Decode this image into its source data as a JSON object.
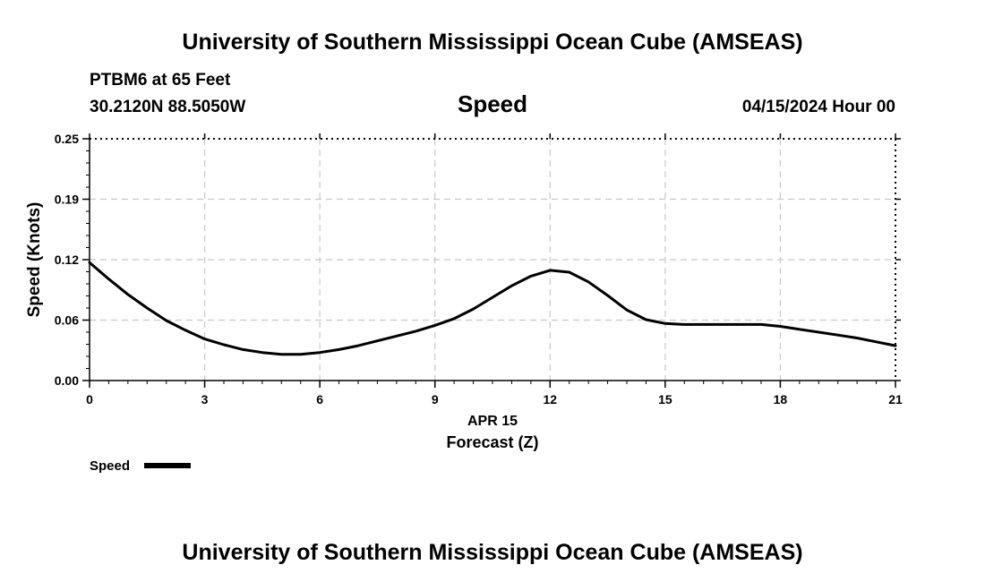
{
  "header": {
    "title": "University of Southern Mississippi Ocean Cube (AMSEAS)",
    "station": "PTBM6 at 65 Feet",
    "coords": "30.2120N  88.5050W",
    "variable": "Speed",
    "datetime": "04/15/2024 Hour 00"
  },
  "footer": {
    "title": "University of Southern Mississippi Ocean Cube (AMSEAS)"
  },
  "chart_data": {
    "type": "line",
    "title": "Speed",
    "xlabel": "Forecast (Z)",
    "xlabel_date": "APR 15",
    "ylabel": "Speed (Knots)",
    "xlim": [
      0,
      21
    ],
    "ylim": [
      0,
      0.25
    ],
    "x_ticks": [
      0,
      3,
      6,
      9,
      12,
      15,
      18,
      21
    ],
    "x_tick_labels": [
      "0",
      "3",
      "6",
      "9",
      "12",
      "15",
      "18",
      "21"
    ],
    "y_ticks": [
      0,
      0.0625,
      0.125,
      0.1875,
      0.25
    ],
    "y_tick_labels": [
      "0.00",
      "0.06",
      "0.12",
      "0.19",
      "0.25"
    ],
    "grid": true,
    "legend": [
      {
        "name": "Speed",
        "position": "bottom-left"
      }
    ],
    "series": [
      {
        "name": "Speed",
        "color": "#000000",
        "x": [
          0,
          0.5,
          1,
          1.5,
          2,
          2.5,
          3,
          3.5,
          4,
          4.5,
          5,
          5.5,
          6,
          6.5,
          7,
          7.5,
          8,
          8.5,
          9,
          9.5,
          10,
          10.5,
          11,
          11.5,
          12,
          12.5,
          13,
          13.5,
          14,
          14.5,
          15,
          15.5,
          16,
          16.5,
          17,
          17.5,
          18,
          18.5,
          19,
          19.5,
          20,
          20.5,
          21
        ],
        "values": [
          0.122,
          0.105,
          0.089,
          0.075,
          0.062,
          0.052,
          0.043,
          0.037,
          0.032,
          0.029,
          0.027,
          0.027,
          0.029,
          0.032,
          0.036,
          0.041,
          0.046,
          0.051,
          0.057,
          0.064,
          0.074,
          0.086,
          0.098,
          0.108,
          0.114,
          0.112,
          0.102,
          0.088,
          0.073,
          0.063,
          0.059,
          0.058,
          0.058,
          0.058,
          0.058,
          0.058,
          0.056,
          0.053,
          0.05,
          0.047,
          0.044,
          0.04,
          0.036
        ]
      }
    ]
  }
}
